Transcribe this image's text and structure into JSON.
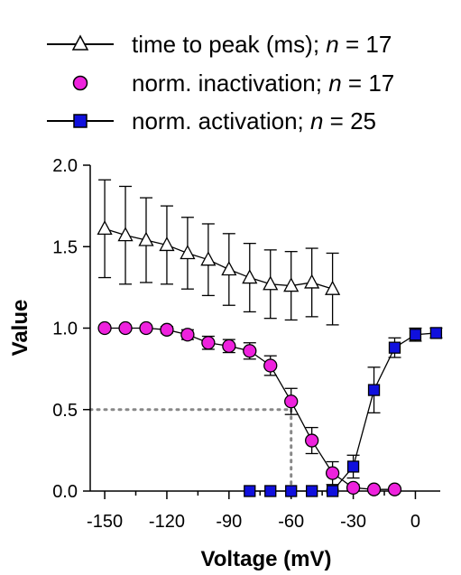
{
  "chart_data": {
    "type": "scatter",
    "xlabel": "Voltage (mV)",
    "ylabel": "Value",
    "xlim": [
      -157,
      12
    ],
    "ylim": [
      0,
      2.0
    ],
    "x_ticks": [
      -150,
      -120,
      -90,
      -60,
      -30,
      0
    ],
    "x_tick_labels": [
      "-150",
      "-120",
      "-90",
      "-60",
      "-30",
      "0"
    ],
    "y_ticks": [
      0,
      0.5,
      1.0,
      1.5,
      2.0
    ],
    "y_tick_labels": [
      "0.0",
      "0.5",
      "1.0",
      "1.5",
      "2.0"
    ],
    "legend_position": "top",
    "legend": {
      "entries": [
        {
          "prefix": "time to peak (ms); ",
          "n_symbol": "n",
          "suffix": " = 17"
        },
        {
          "prefix": "norm. inactivation; ",
          "n_symbol": "n",
          "suffix": " = 17"
        },
        {
          "prefix": "norm. activation; ",
          "n_symbol": "n",
          "suffix": " = 25"
        }
      ]
    },
    "series": [
      {
        "key": "time-to-peak",
        "marker": "triangle",
        "color": "#ffffff",
        "x": [
          -150,
          -140,
          -130,
          -120,
          -110,
          -100,
          -90,
          -80,
          -70,
          -60,
          -50,
          -40
        ],
        "y": [
          1.61,
          1.57,
          1.54,
          1.51,
          1.46,
          1.42,
          1.36,
          1.31,
          1.27,
          1.26,
          1.28,
          1.24
        ],
        "err": [
          0.3,
          0.3,
          0.26,
          0.24,
          0.22,
          0.22,
          0.22,
          0.21,
          0.21,
          0.21,
          0.21,
          0.22
        ]
      },
      {
        "key": "inactivation",
        "marker": "circle",
        "color": "#ee22dd",
        "x": [
          -150,
          -140,
          -130,
          -120,
          -110,
          -100,
          -90,
          -80,
          -70,
          -60,
          -50,
          -40,
          -30,
          -20,
          -10
        ],
        "y": [
          1.0,
          1.0,
          1.0,
          0.99,
          0.96,
          0.91,
          0.89,
          0.86,
          0.77,
          0.55,
          0.31,
          0.11,
          0.02,
          0.01,
          0.01
        ],
        "err": [
          0.0,
          0.0,
          0.01,
          0.02,
          0.03,
          0.04,
          0.04,
          0.05,
          0.06,
          0.08,
          0.08,
          0.07,
          0.02,
          0.0,
          0.0
        ]
      },
      {
        "key": "activation",
        "marker": "square",
        "color": "#1010dd",
        "x": [
          -80,
          -70,
          -60,
          -50,
          -40,
          -30,
          -20,
          -10,
          0,
          10
        ],
        "y": [
          0.0,
          0.0,
          0.0,
          0.0,
          0.0,
          0.15,
          0.62,
          0.88,
          0.96,
          0.97
        ],
        "err": [
          0.0,
          0.0,
          0.0,
          0.0,
          0.01,
          0.07,
          0.14,
          0.06,
          0.04,
          0.03
        ]
      }
    ],
    "reference_lines": {
      "x": -60,
      "y": 0.5,
      "style": "dotted",
      "color": "#888888"
    }
  }
}
